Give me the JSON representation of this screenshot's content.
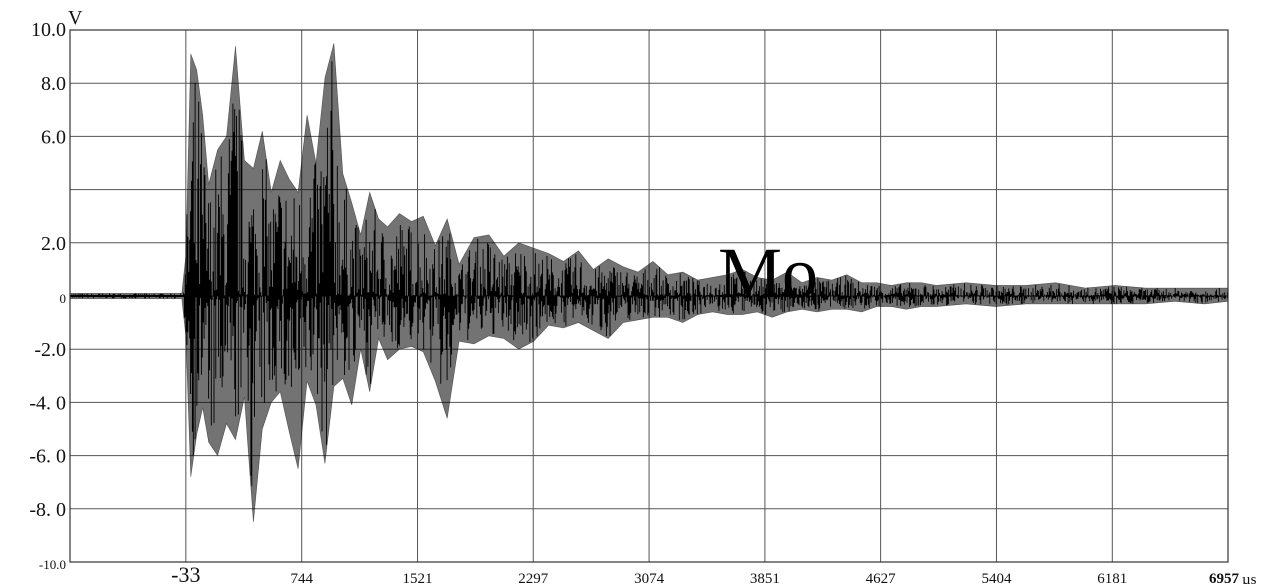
{
  "chart_data": {
    "type": "line",
    "y_unit": "V",
    "x_unit": "µs",
    "annotation": "Mo",
    "ylim": [
      -10.0,
      10.0
    ],
    "xlim": [
      -810,
      6957
    ],
    "grid": true,
    "y_tick_labels": [
      {
        "value": 10.0,
        "label": "10.0"
      },
      {
        "value": 8.0,
        "label": "8.0"
      },
      {
        "value": 6.0,
        "label": "6.0"
      },
      {
        "value": 2.0,
        "label": "2.0"
      },
      {
        "value": 0.0,
        "label": "0"
      },
      {
        "value": -2.0,
        "label": "-2.0"
      },
      {
        "value": -4.0,
        "label": "-4. 0"
      },
      {
        "value": -6.0,
        "label": "-6. 0"
      },
      {
        "value": -8.0,
        "label": "-8. 0"
      },
      {
        "value": -10.0,
        "label": "-10.0"
      }
    ],
    "x_tick_labels": [
      {
        "value": -33,
        "label": "-33"
      },
      {
        "value": 744,
        "label": "744"
      },
      {
        "value": 1521,
        "label": "1521"
      },
      {
        "value": 2297,
        "label": "2297"
      },
      {
        "value": 3074,
        "label": "3074"
      },
      {
        "value": 3851,
        "label": "3851"
      },
      {
        "value": 4627,
        "label": "4627"
      },
      {
        "value": 5404,
        "label": "5404"
      },
      {
        "value": 6181,
        "label": "6181"
      },
      {
        "value": 6957,
        "label": "6957"
      }
    ],
    "series": [
      {
        "color": "#000000",
        "x": [
          -810,
          -600,
          -400,
          -200,
          -60,
          -33,
          0,
          40,
          80,
          120,
          180,
          240,
          300,
          360,
          420,
          480,
          540,
          600,
          660,
          720,
          780,
          840,
          900,
          960,
          1020,
          1080,
          1140,
          1200,
          1260,
          1320,
          1400,
          1480,
          1560,
          1640,
          1720,
          1800,
          1900,
          2000,
          2100,
          2200,
          2300,
          2400,
          2500,
          2600,
          2700,
          2800,
          2900,
          3000,
          3100,
          3200,
          3300,
          3400,
          3500,
          3600,
          3700,
          3800,
          3900,
          4000,
          4100,
          4200,
          4300,
          4400,
          4500,
          4600,
          4700,
          4800,
          4900,
          5000,
          5200,
          5400,
          5600,
          5800,
          6000,
          6200,
          6400,
          6600,
          6800,
          6957
        ],
        "y_max": [
          0.1,
          0.1,
          0.1,
          0.1,
          0.1,
          1.5,
          9.1,
          8.5,
          6.8,
          4.2,
          5.5,
          6.0,
          9.4,
          5.1,
          4.8,
          6.2,
          3.9,
          5.1,
          4.4,
          3.9,
          6.8,
          5.0,
          8.2,
          9.5,
          4.6,
          3.5,
          2.3,
          3.9,
          2.9,
          2.6,
          3.1,
          2.8,
          3.0,
          1.9,
          2.9,
          1.2,
          2.2,
          2.3,
          1.5,
          2.0,
          1.8,
          1.6,
          1.3,
          1.7,
          1.0,
          1.4,
          1.1,
          0.9,
          1.3,
          0.8,
          0.9,
          0.6,
          0.7,
          0.8,
          1.0,
          0.7,
          0.6,
          0.9,
          0.5,
          0.7,
          0.6,
          0.8,
          0.5,
          0.5,
          0.4,
          0.5,
          0.5,
          0.4,
          0.5,
          0.4,
          0.4,
          0.5,
          0.3,
          0.4,
          0.3,
          0.3,
          0.3,
          0.3
        ],
        "y_min": [
          -0.1,
          -0.1,
          -0.1,
          -0.1,
          -0.1,
          -1.5,
          -6.8,
          -5.2,
          -4.2,
          -5.5,
          -6.0,
          -4.8,
          -5.4,
          -3.8,
          -8.5,
          -5.0,
          -4.0,
          -3.6,
          -5.1,
          -6.5,
          -3.2,
          -4.1,
          -6.3,
          -3.4,
          -3.1,
          -4.1,
          -2.0,
          -3.6,
          -1.6,
          -2.4,
          -2.0,
          -1.9,
          -2.1,
          -3.2,
          -4.6,
          -1.7,
          -1.8,
          -1.5,
          -1.6,
          -2.0,
          -1.7,
          -1.1,
          -1.2,
          -1.0,
          -1.3,
          -1.6,
          -1.0,
          -0.9,
          -0.8,
          -0.8,
          -1.0,
          -0.7,
          -0.6,
          -0.7,
          -0.7,
          -0.6,
          -0.8,
          -0.6,
          -0.5,
          -0.6,
          -0.5,
          -0.5,
          -0.6,
          -0.4,
          -0.4,
          -0.5,
          -0.4,
          -0.4,
          -0.3,
          -0.4,
          -0.3,
          -0.3,
          -0.3,
          -0.3,
          -0.3,
          -0.2,
          -0.3,
          -0.2
        ]
      }
    ]
  }
}
